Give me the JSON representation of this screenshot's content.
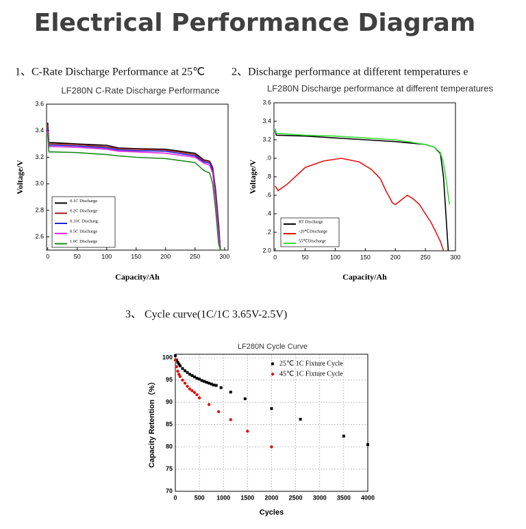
{
  "title": "Electrical Performance Diagram",
  "chart_data": [
    {
      "type": "line",
      "heading": "1、C-Rate Discharge Performance at 25℃",
      "title": "LF280N C-Rate Discharge Performance",
      "x_label": "Capacity/Ah",
      "y_label": "Voltage/V",
      "x": [
        0,
        2,
        10,
        50,
        100,
        120,
        150,
        200,
        250,
        265,
        275,
        280,
        285,
        290,
        293
      ],
      "series": [
        {
          "name": "0.1C   Discharge",
          "color": "#000000",
          "values": [
            3.46,
            3.31,
            3.31,
            3.3,
            3.29,
            3.27,
            3.265,
            3.26,
            3.23,
            3.18,
            3.17,
            3.12,
            2.95,
            2.7,
            2.5
          ]
        },
        {
          "name": "0.2C   Discharge",
          "color": "#9b1b1b",
          "values": [
            3.44,
            3.3,
            3.3,
            3.295,
            3.28,
            3.265,
            3.26,
            3.255,
            3.22,
            3.175,
            3.165,
            3.11,
            2.93,
            2.68,
            2.5
          ]
        },
        {
          "name": "0.33C   Discharg",
          "color": "#1f1fd6",
          "values": [
            3.42,
            3.29,
            3.29,
            3.285,
            3.27,
            3.255,
            3.25,
            3.245,
            3.21,
            3.165,
            3.155,
            3.1,
            2.9,
            2.65,
            2.5
          ]
        },
        {
          "name": "0.5C   Discharge",
          "color": "#e020e0",
          "values": [
            3.4,
            3.28,
            3.28,
            3.275,
            3.26,
            3.245,
            3.24,
            3.23,
            3.2,
            3.155,
            3.14,
            3.08,
            2.88,
            2.62,
            2.5
          ]
        },
        {
          "name": "1.0C   Discharge",
          "color": "#1a8a1a",
          "values": [
            3.38,
            3.24,
            3.24,
            3.235,
            3.22,
            3.21,
            3.2,
            3.19,
            3.16,
            3.1,
            3.08,
            3.0,
            2.8,
            2.55,
            2.5
          ]
        }
      ],
      "xlim": [
        -2,
        306
      ],
      "ylim": [
        2.5,
        3.6
      ],
      "xticks": [
        0,
        50,
        100,
        150,
        200,
        250,
        300
      ],
      "yticks": [
        2.6,
        2.8,
        {
          "value": 3,
          "label": "3.0"
        },
        3.2,
        3.4,
        3.6
      ],
      "grid": false,
      "legend": "lower left"
    },
    {
      "type": "line",
      "heading": "2、Discharge performance at different temperatures e",
      "title": "LF280N Discharge performance at different temperatures",
      "x_label": "Capacity/Ah",
      "y_label": "Voltage/V",
      "series": [
        {
          "name": "RT Discharge",
          "color": "#000000",
          "x": [
            0,
            2,
            50,
            100,
            150,
            200,
            250,
            265,
            275,
            280,
            284,
            288
          ],
          "values": [
            3.3,
            3.25,
            3.24,
            3.22,
            3.2,
            3.18,
            3.15,
            3.12,
            3.05,
            2.8,
            2.4,
            2.0
          ]
        },
        {
          "name": "-20℃Discharge",
          "color": "#e01010",
          "x": [
            0,
            5,
            20,
            50,
            80,
            110,
            140,
            160,
            175,
            185,
            195,
            200,
            210,
            220,
            230,
            240,
            260,
            275,
            280
          ],
          "values": [
            2.7,
            2.65,
            2.72,
            2.9,
            2.97,
            3.0,
            2.96,
            2.88,
            2.78,
            2.64,
            2.52,
            2.5,
            2.55,
            2.6,
            2.56,
            2.5,
            2.3,
            2.1,
            2.0
          ]
        },
        {
          "name": "55℃Discharge",
          "color": "#33dd33",
          "x": [
            0,
            2,
            50,
            100,
            150,
            200,
            250,
            265,
            275,
            280,
            285,
            290
          ],
          "values": [
            3.32,
            3.27,
            3.25,
            3.24,
            3.22,
            3.2,
            3.15,
            3.12,
            3.06,
            2.95,
            2.75,
            2.5
          ]
        }
      ],
      "xlim": [
        -2,
        300
      ],
      "ylim": [
        2.0,
        3.6
      ],
      "xticks": [
        0,
        50,
        100,
        150,
        200,
        250,
        300
      ],
      "yticks": [
        {
          "value": 2,
          "label": "2.0"
        },
        {
          "value": 2.2,
          "label": ".2"
        },
        {
          "value": 2.4,
          "label": ".4"
        },
        {
          "value": 2.6,
          "label": ".6"
        },
        {
          "value": 2.8,
          "label": ".8"
        },
        {
          "value": 3,
          "label": ".0"
        },
        3.2,
        3.4,
        3.6
      ],
      "grid": false,
      "legend": "lower left"
    },
    {
      "type": "scatter",
      "heading": "3、 Cycle curve(1C/1C 3.65V-2.5V)",
      "title": "LF280N Cycle Curve",
      "x_label": "Cycles",
      "y_label": "Capacity Retention（%）",
      "series": [
        {
          "name": "25℃ 1C Fixture Cycle",
          "color": "#000000",
          "marker": "square",
          "x": [
            0,
            25,
            50,
            75,
            100,
            150,
            200,
            250,
            300,
            350,
            400,
            450,
            500,
            550,
            600,
            650,
            700,
            750,
            800,
            850,
            950,
            1150,
            1450,
            2000,
            2600,
            3500,
            4000
          ],
          "values": [
            100.5,
            99.5,
            99,
            98.6,
            98.2,
            97.6,
            97.1,
            96.7,
            96.3,
            96,
            95.7,
            95.4,
            95.2,
            94.9,
            94.7,
            94.5,
            94.3,
            94.1,
            93.9,
            93.8,
            93.3,
            92.3,
            90.8,
            88.6,
            86.2,
            82.4,
            80.5
          ]
        },
        {
          "name": "45℃ 1C Fixture Cycle",
          "color": "#e01010",
          "marker": "circle",
          "x": [
            0,
            25,
            50,
            75,
            100,
            150,
            200,
            250,
            300,
            350,
            400,
            450,
            500,
            700,
            900,
            1150,
            1500,
            2000
          ],
          "values": [
            99.5,
            98,
            97,
            96.3,
            95.8,
            95,
            94.3,
            93.6,
            93,
            92.6,
            92.2,
            91.7,
            91,
            89.5,
            87.9,
            86.1,
            83.5,
            80
          ]
        }
      ],
      "xlim": [
        0,
        4000
      ],
      "ylim": [
        70,
        100.8
      ],
      "xticks": [
        0,
        500,
        1000,
        1500,
        2000,
        2500,
        3000,
        3500,
        4000
      ],
      "yticks": [
        70,
        75,
        80,
        85,
        90,
        95,
        100
      ],
      "grid": true,
      "legend": "upper right"
    }
  ]
}
